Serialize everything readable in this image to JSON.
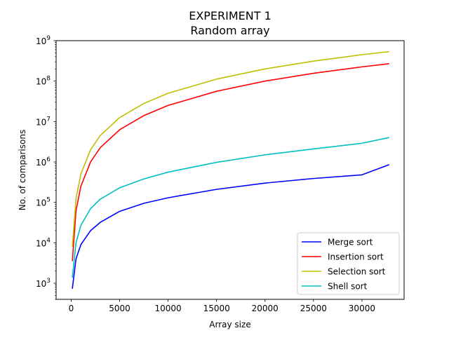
{
  "chart_data": {
    "type": "line",
    "title": "EXPERIMENT 1",
    "subtitle": "Random array",
    "xlabel": "Array size",
    "ylabel": "No. of comparisons",
    "x_scale": "linear",
    "y_scale": "log",
    "xlim": [
      -1550,
      34350
    ],
    "ylim": [
      400,
      1000000000
    ],
    "x_ticks": [
      0,
      5000,
      10000,
      15000,
      20000,
      25000,
      30000
    ],
    "x_tick_labels": [
      "0",
      "5000",
      "10000",
      "15000",
      "20000",
      "25000",
      "30000"
    ],
    "y_ticks": [
      1000,
      10000,
      100000,
      1000000,
      10000000,
      100000000,
      1000000000
    ],
    "y_tick_labels": [
      {
        "base": "10",
        "exp": "3"
      },
      {
        "base": "10",
        "exp": "4"
      },
      {
        "base": "10",
        "exp": "5"
      },
      {
        "base": "10",
        "exp": "6"
      },
      {
        "base": "10",
        "exp": "7"
      },
      {
        "base": "10",
        "exp": "8"
      },
      {
        "base": "10",
        "exp": "9"
      }
    ],
    "grid": false,
    "legend_position": "lower-right",
    "x": [
      128,
      500,
      1000,
      2000,
      3000,
      5000,
      7500,
      10000,
      15000,
      20000,
      25000,
      30000,
      32768
    ],
    "series": [
      {
        "name": "Merge sort",
        "color": "#0000ff",
        "values": [
          750,
          4000,
          9000,
          20000,
          32000,
          60000,
          95000,
          130000,
          210000,
          300000,
          390000,
          480000,
          850000
        ]
      },
      {
        "name": "Insertion sort",
        "color": "#ff0000",
        "values": [
          3600,
          62000,
          250000,
          1000000,
          2250000,
          6250000,
          14000000,
          25000000,
          56000000,
          100000000,
          156000000,
          225000000,
          268000000
        ]
      },
      {
        "name": "Selection sort",
        "color": "#bfbf00",
        "values": [
          8100,
          125000,
          500000,
          2000000,
          4500000,
          12500000,
          28000000,
          50000000,
          112000000,
          200000000,
          312000000,
          450000000,
          536000000
        ]
      },
      {
        "name": "Shell sort",
        "color": "#00bfbf",
        "values": [
          1400,
          10000,
          27000,
          70000,
          120000,
          230000,
          380000,
          560000,
          980000,
          1500000,
          2100000,
          2900000,
          4000000
        ]
      }
    ]
  }
}
